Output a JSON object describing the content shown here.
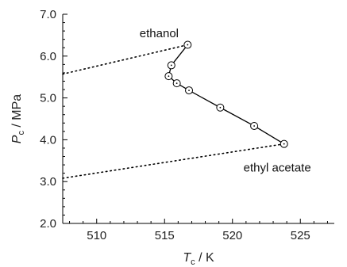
{
  "chart_data": {
    "type": "scatter",
    "xlabel": {
      "main": "T",
      "sub": "c",
      "unit": " / K"
    },
    "ylabel": {
      "main": "P",
      "sub": "c",
      "unit": " / MPa"
    },
    "xlim": [
      507.5,
      527.5
    ],
    "ylim": [
      2.0,
      7.0
    ],
    "x_ticks": [
      510,
      515,
      520,
      525
    ],
    "x_tick_labels": [
      "510",
      "515",
      "520",
      "525"
    ],
    "y_ticks": [
      2.0,
      3.0,
      4.0,
      5.0,
      6.0,
      7.0
    ],
    "y_tick_labels": [
      "2.0",
      "3.0",
      "4.0",
      "5.0",
      "6.0",
      "7.0"
    ],
    "x_minor_step": 1,
    "y_minor_step": 0.2,
    "grid": false,
    "series": [
      {
        "marker": "open-circle-dot",
        "line": "solid",
        "x": [
          516.7,
          515.5,
          515.3,
          515.9,
          516.8,
          519.1,
          521.6,
          523.8
        ],
        "y": [
          6.27,
          5.78,
          5.52,
          5.35,
          5.18,
          4.77,
          4.33,
          3.9
        ]
      }
    ],
    "reference_lines": [
      {
        "style": "dotted",
        "x": [
          507.5,
          516.7
        ],
        "y": [
          5.57,
          6.27
        ]
      },
      {
        "style": "dotted",
        "x": [
          507.5,
          523.8
        ],
        "y": [
          3.08,
          3.9
        ]
      }
    ],
    "annotations": [
      {
        "text": "ethanol",
        "x": 514.6,
        "y": 6.45
      },
      {
        "text": "ethyl acetate",
        "x": 523.3,
        "y": 3.24
      }
    ]
  }
}
